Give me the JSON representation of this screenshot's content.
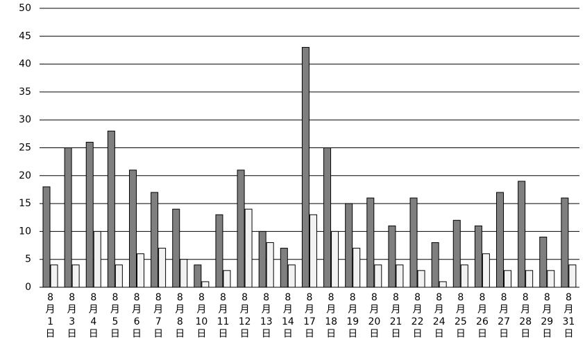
{
  "chart_data": {
    "type": "bar",
    "categories": [
      "8月1日",
      "8月3日",
      "8月4日",
      "8月5日",
      "8月6日",
      "8月7日",
      "8月8日",
      "8月10日",
      "8月11日",
      "8月12日",
      "8月13日",
      "8月14日",
      "8月17日",
      "8月18日",
      "8月19日",
      "8月20日",
      "8月21日",
      "8月22日",
      "8月24日",
      "8月25日",
      "8月26日",
      "8月27日",
      "8月28日",
      "8月29日",
      "8月31日"
    ],
    "series": [
      {
        "color": "#7f7f7f",
        "values": [
          18,
          25,
          26,
          28,
          21,
          17,
          14,
          4,
          13,
          21,
          10,
          7,
          43,
          25,
          15,
          16,
          11,
          16,
          8,
          12,
          11,
          17,
          19,
          9,
          16
        ]
      },
      {
        "color": "#f2f2f2",
        "values": [
          4,
          4,
          10,
          4,
          6,
          7,
          5,
          1,
          3,
          14,
          8,
          4,
          13,
          10,
          7,
          4,
          4,
          3,
          1,
          4,
          6,
          3,
          3,
          3,
          4
        ]
      }
    ],
    "ylim": [
      0,
      50
    ],
    "yticks": [
      0,
      5,
      10,
      15,
      20,
      25,
      30,
      35,
      40,
      45,
      50
    ],
    "grid": true
  }
}
